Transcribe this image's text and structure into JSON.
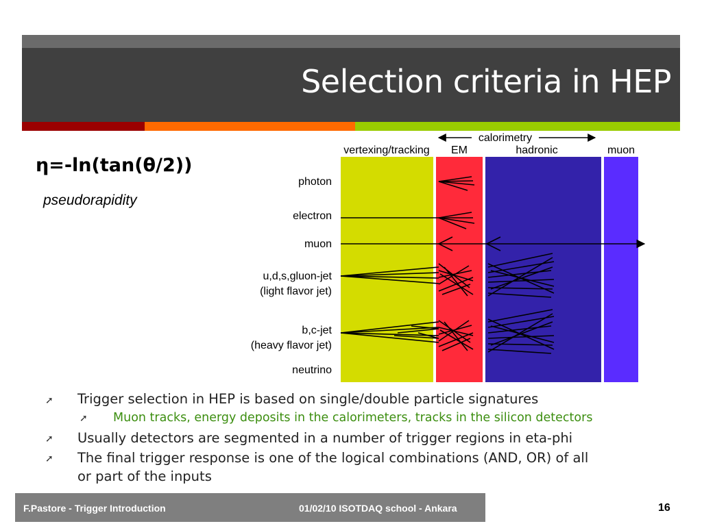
{
  "slide": {
    "title": "Selection criteria in HEP",
    "formula": "η=-ln(tan(θ/2))",
    "formula_caption": "pseudorapidity"
  },
  "stripe_colors": [
    "#9b0000",
    "#ff6a00",
    "#99cc00"
  ],
  "diagram": {
    "header_group": "calorimetry",
    "columns": [
      "vertexing/tracking",
      "EM",
      "hadronic",
      "muon"
    ],
    "column_colors": [
      "#d4dc00",
      "#ff2a3a",
      "#3322aa",
      "#5a2cff"
    ],
    "rows": [
      "photon",
      "electron",
      "muon",
      "u,d,s,gluon-jet",
      "(light flavor jet)",
      "b,c-jet",
      "(heavy flavor jet)",
      "neutrino"
    ]
  },
  "bullets": [
    {
      "level": 1,
      "text": "Trigger selection in HEP is based on single/double particle signatures"
    },
    {
      "level": 2,
      "text": "Muon tracks, energy deposits in the calorimeters, tracks in the  silicon detectors"
    },
    {
      "level": 1,
      "text": "Usually detectors are segmented in a number of trigger regions in eta-phi"
    },
    {
      "level": 1,
      "text": "The final trigger response is one of the logical combinations (AND, OR) of  all"
    },
    {
      "level": 1,
      "text": "or part of the inputs"
    }
  ],
  "footer": {
    "left": "F.Pastore - Trigger Introduction",
    "right": "01/02/10 ISOTDAQ school - Ankara",
    "page": "16"
  }
}
